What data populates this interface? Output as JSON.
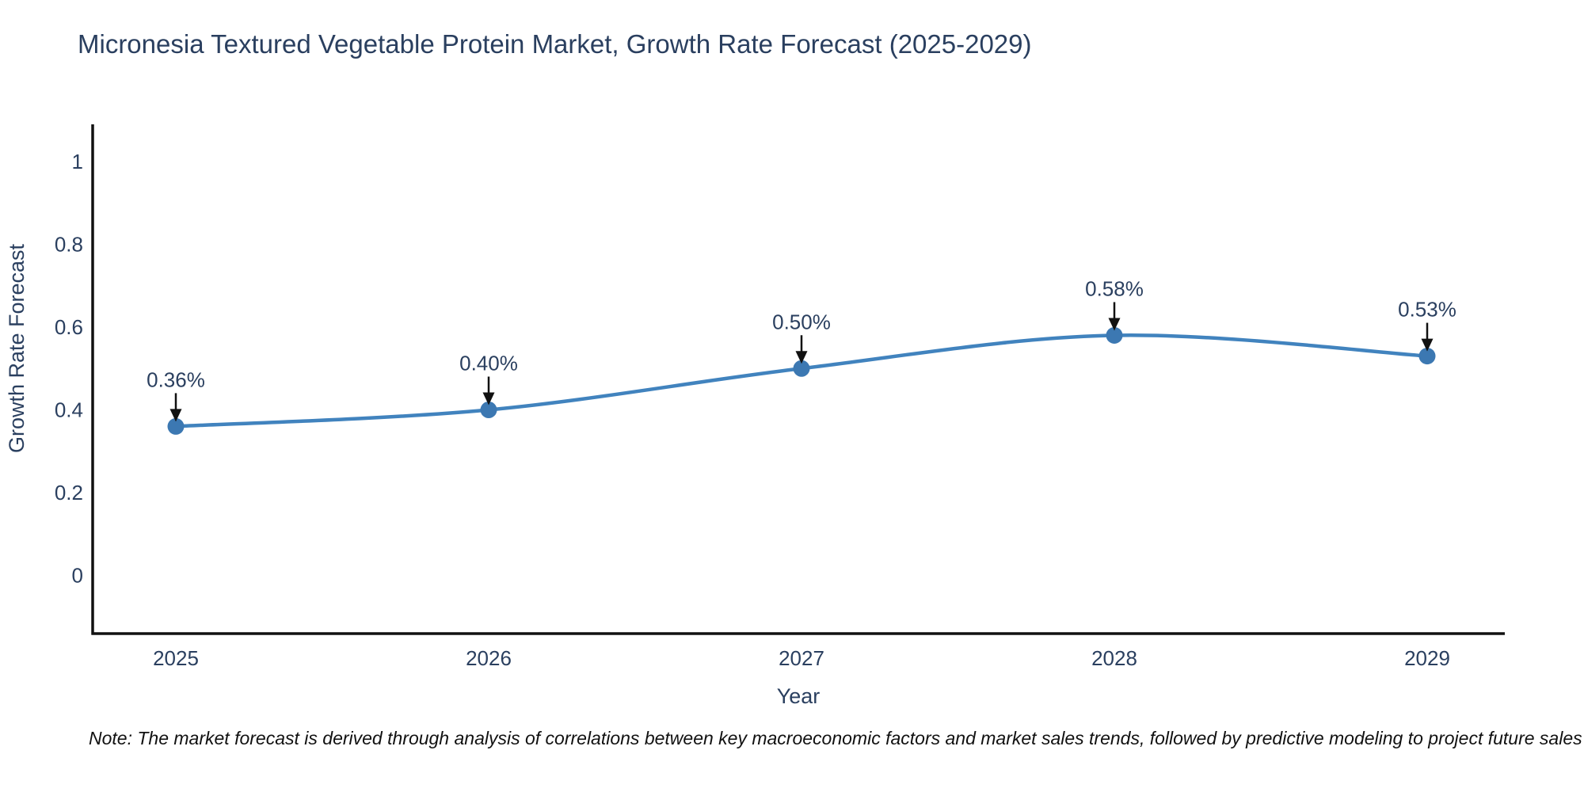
{
  "title": "Micronesia Textured Vegetable Protein Market, Growth Rate Forecast (2025-2029)",
  "note": "Note: The market forecast is derived through analysis of correlations between key macroeconomic factors and market sales trends, followed by predictive modeling to project future sales",
  "chart_data": {
    "type": "line",
    "title": "Micronesia Textured Vegetable Protein Market, Growth Rate Forecast (2025-2029)",
    "xlabel": "Year",
    "ylabel": "Growth Rate Forecast",
    "categories": [
      "2025",
      "2026",
      "2027",
      "2028",
      "2029"
    ],
    "series": [
      {
        "name": "Growth Rate Forecast",
        "values": [
          0.36,
          0.4,
          0.5,
          0.58,
          0.53
        ],
        "point_labels": [
          "0.36%",
          "0.40%",
          "0.50%",
          "0.58%",
          "0.53%"
        ]
      }
    ],
    "line_shape": "spline",
    "markers": true,
    "grid": false,
    "legend_position": "none",
    "yticks": [
      0,
      0.2,
      0.4,
      0.6,
      0.8,
      1
    ],
    "ytick_labels": [
      "0",
      "0.2",
      "0.4",
      "0.6",
      "0.8",
      "1"
    ],
    "ylim": [
      -0.14,
      1.1
    ],
    "colors": {
      "line": "#4183be",
      "marker": "#3c78b2",
      "axis": "#111111",
      "text": "#2a3f5f",
      "arrow": "#111111"
    }
  }
}
